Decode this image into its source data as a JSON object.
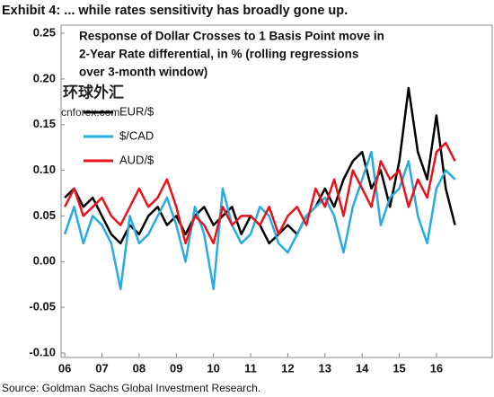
{
  "chart_data": {
    "type": "line",
    "title": "Exhibit 4: ... while rates sensitivity has broadly gone up.",
    "annotation": [
      "Response of Dollar Crosses to 1 Basis Point move in",
      "2-Year Rate differential, in % (rolling regressions",
      "over 3-month window)"
    ],
    "source": "Source: Goldman Sachs Global Investment Research.",
    "watermark": [
      "环球外汇",
      "cnforex.com"
    ],
    "x": [
      2006,
      2006.25,
      2006.5,
      2006.75,
      2007,
      2007.25,
      2007.5,
      2007.75,
      2008,
      2008.25,
      2008.5,
      2008.75,
      2009,
      2009.25,
      2009.5,
      2009.75,
      2010,
      2010.25,
      2010.5,
      2010.75,
      2011,
      2011.25,
      2011.5,
      2011.75,
      2012,
      2012.25,
      2012.5,
      2012.75,
      2013,
      2013.25,
      2013.5,
      2013.75,
      2014,
      2014.25,
      2014.5,
      2014.75,
      2015,
      2015.25,
      2015.5,
      2015.75,
      2016,
      2016.25,
      2016.5
    ],
    "series": [
      {
        "name": "EUR/$",
        "color": "#000000",
        "values": [
          0.07,
          0.08,
          0.06,
          0.07,
          0.05,
          0.03,
          0.02,
          0.04,
          0.03,
          0.05,
          0.06,
          0.04,
          0.05,
          0.03,
          0.05,
          0.06,
          0.04,
          0.05,
          0.06,
          0.03,
          0.05,
          0.04,
          0.02,
          0.03,
          0.04,
          0.03,
          0.05,
          0.06,
          0.08,
          0.06,
          0.09,
          0.11,
          0.12,
          0.08,
          0.1,
          0.06,
          0.11,
          0.19,
          0.12,
          0.09,
          0.16,
          0.08,
          0.04
        ]
      },
      {
        "name": "$/CAD",
        "color": "#29abe2",
        "values": [
          0.03,
          0.06,
          0.02,
          0.05,
          0.04,
          0.02,
          -0.03,
          0.05,
          0.02,
          0.03,
          0.05,
          0.07,
          0.04,
          0.0,
          0.06,
          0.03,
          -0.03,
          0.08,
          0.04,
          0.02,
          0.03,
          0.06,
          0.05,
          0.02,
          0.01,
          0.03,
          0.05,
          0.06,
          0.07,
          0.05,
          0.01,
          0.06,
          0.09,
          0.12,
          0.04,
          0.07,
          0.08,
          0.11,
          0.05,
          0.02,
          0.08,
          0.1,
          0.09
        ]
      },
      {
        "name": "AUD/$",
        "color": "#e8141b",
        "values": [
          0.06,
          0.08,
          0.05,
          0.06,
          0.07,
          0.05,
          0.04,
          0.06,
          0.08,
          0.06,
          0.07,
          0.09,
          0.06,
          0.02,
          0.05,
          0.04,
          0.02,
          0.06,
          0.04,
          0.05,
          0.05,
          0.04,
          0.06,
          0.03,
          0.05,
          0.06,
          0.04,
          0.08,
          0.06,
          0.09,
          0.05,
          0.1,
          0.08,
          0.06,
          0.11,
          0.09,
          0.1,
          0.06,
          0.09,
          0.07,
          0.12,
          0.13,
          0.11
        ]
      }
    ],
    "xlim": [
      2005.9,
      2017.5
    ],
    "xticks": [
      {
        "value": 2006,
        "label": "06"
      },
      {
        "value": 2007,
        "label": "07"
      },
      {
        "value": 2008,
        "label": "08"
      },
      {
        "value": 2009,
        "label": "09"
      },
      {
        "value": 2010,
        "label": "10"
      },
      {
        "value": 2011,
        "label": "11"
      },
      {
        "value": 2012,
        "label": "12"
      },
      {
        "value": 2013,
        "label": "13"
      },
      {
        "value": 2014,
        "label": "14"
      },
      {
        "value": 2015,
        "label": "15"
      },
      {
        "value": 2016,
        "label": "16"
      }
    ],
    "ylim": [
      -0.1,
      0.25
    ],
    "yticks": [
      {
        "value": 0.25,
        "label": "0.25"
      },
      {
        "value": 0.2,
        "label": "0.20"
      },
      {
        "value": 0.15,
        "label": "0.15"
      },
      {
        "value": 0.1,
        "label": "0.10"
      },
      {
        "value": 0.05,
        "label": "0.05"
      },
      {
        "value": 0,
        "label": "0.00"
      },
      {
        "value": -0.05,
        "label": "-0.05"
      },
      {
        "value": -0.1,
        "label": "-0.10"
      }
    ],
    "grid": false
  }
}
